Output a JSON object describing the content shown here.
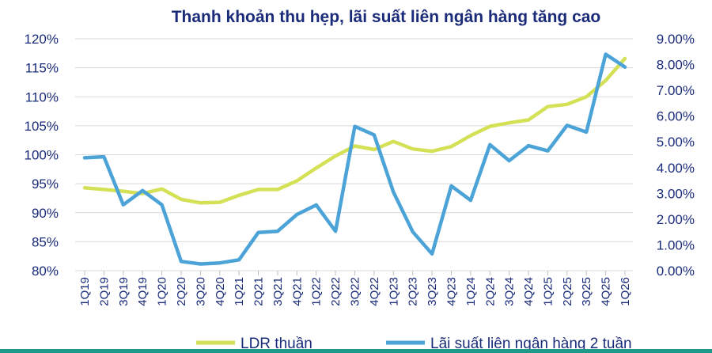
{
  "chart_data": {
    "type": "line",
    "title": "Thanh khoản thu hẹp, lãi suất liên ngân hàng tăng cao",
    "categories": [
      "1Q19",
      "2Q19",
      "3Q19",
      "4Q19",
      "1Q20",
      "2Q20",
      "3Q20",
      "4Q20",
      "1Q21",
      "2Q21",
      "3Q21",
      "4Q21",
      "1Q22",
      "2Q22",
      "3Q22",
      "4Q22",
      "1Q23",
      "2Q23",
      "3Q23",
      "4Q23",
      "1Q24",
      "2Q24",
      "3Q24",
      "4Q24",
      "1Q25",
      "2Q25",
      "3Q25",
      "4Q25",
      "1Q26"
    ],
    "x_tick_labels": [
      "1Q19",
      "2Q19",
      "3Q19",
      "4Q19",
      "1Q20",
      "2Q20",
      "3Q20",
      "4Q20",
      "1Q21",
      "2Q21",
      "3Q21",
      "4Q21",
      "1Q22",
      "2Q22",
      "3Q22",
      "4Q22",
      "1Q23",
      "2Q23",
      "3Q23",
      "4Q23",
      "1Q24",
      "2Q24",
      "3Q24",
      "4Q24",
      "1Q25",
      "2Q25",
      "3Q25",
      "4Q25",
      "1Q26"
    ],
    "y_left": {
      "ylim": [
        80,
        120
      ],
      "ticks": [
        80,
        85,
        90,
        95,
        100,
        105,
        110,
        115,
        120
      ],
      "tick_labels": [
        "80%",
        "85%",
        "90%",
        "95%",
        "100%",
        "105%",
        "110%",
        "115%",
        "120%"
      ]
    },
    "y_right": {
      "ylim": [
        0,
        9
      ],
      "ticks": [
        0,
        1,
        2,
        3,
        4,
        5,
        6,
        7,
        8,
        9
      ],
      "tick_labels": [
        "0.00%",
        "1.00%",
        "2.00%",
        "3.00%",
        "4.00%",
        "5.00%",
        "6.00%",
        "7.00%",
        "8.00%",
        "9.00%"
      ]
    },
    "series": [
      {
        "name": "LDR thuần",
        "axis": "left",
        "color": "#d4e157",
        "values": [
          94.3,
          94.0,
          93.7,
          93.3,
          94.1,
          92.3,
          91.7,
          91.8,
          93.0,
          94.0,
          94.0,
          95.5,
          97.7,
          99.8,
          101.5,
          100.9,
          102.3,
          101.0,
          100.6,
          101.4,
          103.3,
          104.9,
          105.5,
          106.0,
          108.3,
          108.7,
          110.0,
          112.8,
          116.6
        ]
      },
      {
        "name": "Lãi suất liên ngân hàng 2 tuần",
        "axis": "right",
        "color": "#4ba3d8",
        "values": [
          4.38,
          4.42,
          2.56,
          3.11,
          2.56,
          0.36,
          0.26,
          0.3,
          0.42,
          1.48,
          1.53,
          2.18,
          2.55,
          1.53,
          5.6,
          5.27,
          3.05,
          1.51,
          0.65,
          3.29,
          2.73,
          4.89,
          4.27,
          4.85,
          4.65,
          5.64,
          5.38,
          8.4,
          7.9
        ]
      }
    ],
    "legend": {
      "placement": "bottom"
    },
    "grid": {
      "horizontal": true,
      "vertical": false
    }
  }
}
